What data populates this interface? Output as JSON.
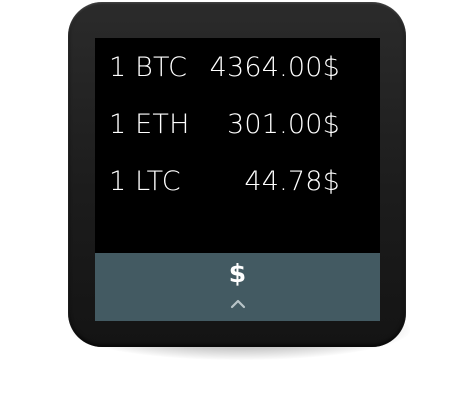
{
  "rates": [
    {
      "coin": "1 BTC",
      "price": "4364.00$"
    },
    {
      "coin": "1 ETH",
      "price": "301.00$"
    },
    {
      "coin": "1 LTC",
      "price": "44.78$"
    }
  ],
  "currency_selector": {
    "symbol": "$",
    "icon": "chevron-up-icon"
  },
  "colors": {
    "bar_background": "#435a62",
    "screen_background": "#000000",
    "text": "#ffffff"
  }
}
